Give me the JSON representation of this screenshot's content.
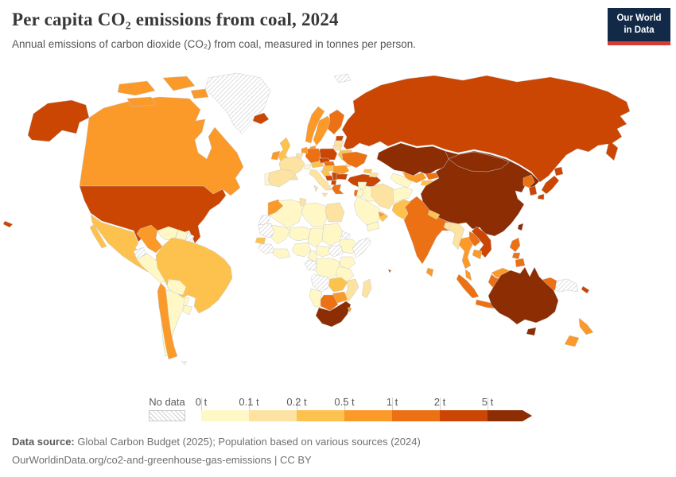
{
  "header": {
    "title": "Per capita CO₂ emissions from coal, 2024",
    "subtitle": "Annual emissions of carbon dioxide (CO₂) from coal, measured in tonnes per person."
  },
  "logo": {
    "line1": "Our World",
    "line2": "in Data",
    "bg": "#122947",
    "accent": "#d73c34"
  },
  "footer": {
    "source_label": "Data source:",
    "source_text": " Global Carbon Budget (2025); Population based on various sources (2024)",
    "link_text": "OurWorldinData.org/co2-and-greenhouse-gas-emissions | CC BY"
  },
  "chart_data": {
    "type": "choropleth",
    "title": "Per capita CO₂ emissions from coal, 2024",
    "unit": "tonnes of CO₂ per person",
    "year": 2024,
    "legend_no_data_label": "No data",
    "bins": [
      {
        "label": "0 t",
        "range": "0-0.1",
        "color": "#FFF8C6"
      },
      {
        "label": "0.1 t",
        "range": "0.1-0.2",
        "color": "#FDE3A1"
      },
      {
        "label": "0.2 t",
        "range": "0.2-0.5",
        "color": "#FDC24E"
      },
      {
        "label": "0.5 t",
        "range": "0.5-1",
        "color": "#FB9929"
      },
      {
        "label": "1 t",
        "range": "1-2",
        "color": "#EC7014"
      },
      {
        "label": "2 t",
        "range": "2-5",
        "color": "#CB4503"
      },
      {
        "label": "5 t",
        "range": "5+",
        "color": "#8C2D04"
      }
    ],
    "palette": {
      "0-0.1": "#FFF8C6",
      "0.1-0.2": "#FDE3A1",
      "0.2-0.5": "#FDC24E",
      "0.5-1": "#FB9929",
      "1-2": "#EC7014",
      "2-5": "#CB4503",
      "5+": "#8C2D04"
    },
    "countries": {
      "china": "5+",
      "mongolia": "5+",
      "kazakhstan": "5+",
      "taiwan": "5+",
      "australia": "5+",
      "south_africa": "5+",
      "russia": "2-5",
      "united_states": "2-5",
      "iceland": "2-5",
      "turkey": "2-5",
      "poland": "2-5",
      "czechia": "2-5",
      "estonia": "2-5",
      "serbia": "2-5",
      "bosnia": "2-5",
      "bulgaria": "2-5",
      "north_macedonia": "2-5",
      "south_korea": "2-5",
      "japan": "2-5",
      "vietnam": "2-5",
      "new_caledonia": "2-5",
      "mauritius": "2-5",
      "germany": "1-2",
      "finland": "1-2",
      "ukraine": "1-2",
      "slovakia": "1-2",
      "india": "1-2",
      "north_korea": "1-2",
      "philippines": "1-2",
      "indonesia": "1-2",
      "laos": "1-2",
      "kyrgyzstan": "1-2",
      "botswana": "1-2",
      "dominican_republic": "1-2",
      "israel": "1-2",
      "greece": "1-2",
      "canada": "0.5-1",
      "norway": "0.5-1",
      "sweden": "0.5-1",
      "ireland": "0.5-1",
      "denmark": "0.5-1",
      "netherlands": "0.5-1",
      "morocco": "0.5-1",
      "colombia": "0.5-1",
      "chile": "0.5-1",
      "guatemala": "0.5-1",
      "panama": "0.5-1",
      "thailand": "0.5-1",
      "cambodia": "0.5-1",
      "malaysia": "0.5-1",
      "new_zealand": "0.5-1",
      "uzbekistan": "0.5-1",
      "zimbabwe": "0.5-1",
      "romania": "0.5-1",
      "eswatini": "0.5-1",
      "sri_lanka": "0.5-1",
      "uae": "0.5-1",
      "mexico": "0.2-0.5",
      "brazil": "0.2-0.5",
      "united_kingdom": "0.2-0.5",
      "austria": "0.2-0.5",
      "slovenia_croatia": "0.2-0.5",
      "hungary": "0.2-0.5",
      "belarus": "0.2-0.5",
      "nepal": "0.2-0.5",
      "senegal": "0.2-0.5",
      "zambia": "0.2-0.5",
      "tajikistan": "0.2-0.5",
      "georgia": "0.2-0.5",
      "pakistan": "0.2-0.5",
      "oman": "0.2-0.5",
      "france": "0.1-0.2",
      "spain": "0.1-0.2",
      "italy": "0.1-0.2",
      "latvia": "0.1-0.2",
      "lithuania": "0.1-0.2",
      "moldova": "0.1-0.2",
      "belgium": "0.1-0.2",
      "iran": "0.1-0.2",
      "egypt": "0.1-0.2",
      "tunisia": "0.1-0.2",
      "bangladesh": "0.1-0.2",
      "myanmar": "0.1-0.2",
      "madagascar": "0.1-0.2",
      "mozambique": "0.1-0.2",
      "azerbaijan": "0.1-0.2",
      "portugal": "0-0.1",
      "switzerland": "0-0.1",
      "venezuela": "0-0.1",
      "guyana_suriname": "0-0.1",
      "peru": "0-0.1",
      "bolivia": "0-0.1",
      "paraguay": "0-0.1",
      "argentina": "0-0.1",
      "uruguay": "0-0.1",
      "cuba": "0-0.1",
      "haiti": "0-0.1",
      "jamaica": "0-0.1",
      "honduras_nicaragua": "0-0.1",
      "algeria": "0-0.1",
      "libya": "0-0.1",
      "mali": "0-0.1",
      "niger": "0-0.1",
      "chad": "0-0.1",
      "sudan": "0-0.1",
      "ethiopia": "0-0.1",
      "nigeria": "0-0.1",
      "ivory_ghana": "0-0.1",
      "cameroon": "0-0.1",
      "car": "0-0.1",
      "drc": "0-0.1",
      "kenya_uganda": "0-0.1",
      "tanzania": "0-0.1",
      "namibia": "0-0.1",
      "saudi_arabia": "0-0.1",
      "yemen": "0-0.1",
      "iraq": "0-0.1",
      "syria": "0-0.1",
      "jordan": "0-0.1",
      "afghanistan": "0-0.1",
      "turkmenistan": "0-0.1",
      "greenland": "no-data",
      "svalbard": "no-data",
      "western_sahara": "no-data",
      "mauritania": "no-data",
      "guinea_region": "no-data",
      "south_sudan": "no-data",
      "eritrea": "no-data",
      "somalia": "no-data",
      "gabon_congo": "no-data",
      "angola": "no-data",
      "ecuador": "no-data",
      "french_guiana": "no-data",
      "png": "no-data",
      "belize": "no-data",
      "costa_rica": "no-data",
      "puerto_rico": "no-data",
      "falkland": "no-data"
    }
  }
}
